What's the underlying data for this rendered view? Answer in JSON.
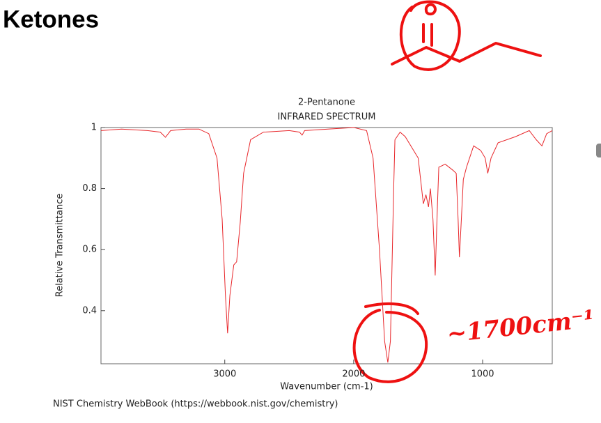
{
  "slide_title": "Ketones",
  "source": "NIST Chemistry WebBook (https://webbook.nist.gov/chemistry)",
  "chart_data": {
    "type": "line",
    "title": "2-Pentanone",
    "subtitle": "INFRARED SPECTRUM",
    "x_label": "Wavenumber (cm-1)",
    "y_label": "Relative Transmittance",
    "annotation": "~1700cm⁻¹",
    "x": [
      3960,
      3800,
      3600,
      3500,
      3460,
      3420,
      3300,
      3200,
      3124,
      3060,
      3020,
      2995,
      2978,
      2960,
      2930,
      2908,
      2880,
      2854,
      2800,
      2700,
      2500,
      2420,
      2400,
      2380,
      2200,
      2000,
      1900,
      1850,
      1800,
      1760,
      1735,
      1715,
      1690,
      1680,
      1640,
      1600,
      1500,
      1460,
      1440,
      1420,
      1405,
      1385,
      1368,
      1350,
      1340,
      1290,
      1230,
      1205,
      1190,
      1180,
      1165,
      1150,
      1125,
      1070,
      1015,
      980,
      960,
      935,
      880,
      745,
      638,
      584,
      540,
      503,
      460
    ],
    "series": [
      {
        "name": "2-Pentanone",
        "color": "#e8262a",
        "values": [
          0.99,
          0.995,
          0.99,
          0.985,
          0.968,
          0.99,
          0.995,
          0.995,
          0.98,
          0.9,
          0.7,
          0.45,
          0.326,
          0.45,
          0.55,
          0.56,
          0.69,
          0.85,
          0.96,
          0.985,
          0.99,
          0.985,
          0.975,
          0.99,
          0.995,
          1.0,
          0.99,
          0.9,
          0.6,
          0.3,
          0.23,
          0.3,
          0.8,
          0.96,
          0.985,
          0.97,
          0.9,
          0.75,
          0.78,
          0.74,
          0.8,
          0.7,
          0.515,
          0.75,
          0.87,
          0.88,
          0.86,
          0.85,
          0.7,
          0.575,
          0.7,
          0.83,
          0.87,
          0.94,
          0.925,
          0.9,
          0.85,
          0.9,
          0.95,
          0.97,
          0.99,
          0.96,
          0.94,
          0.98,
          0.99
        ]
      }
    ],
    "xlim": [
      3960,
      460
    ],
    "ylim": [
      0.226,
      1
    ],
    "xticks": [
      3000,
      2000,
      1000
    ],
    "yticks": [
      0.4,
      0.6,
      0.8,
      1
    ]
  }
}
